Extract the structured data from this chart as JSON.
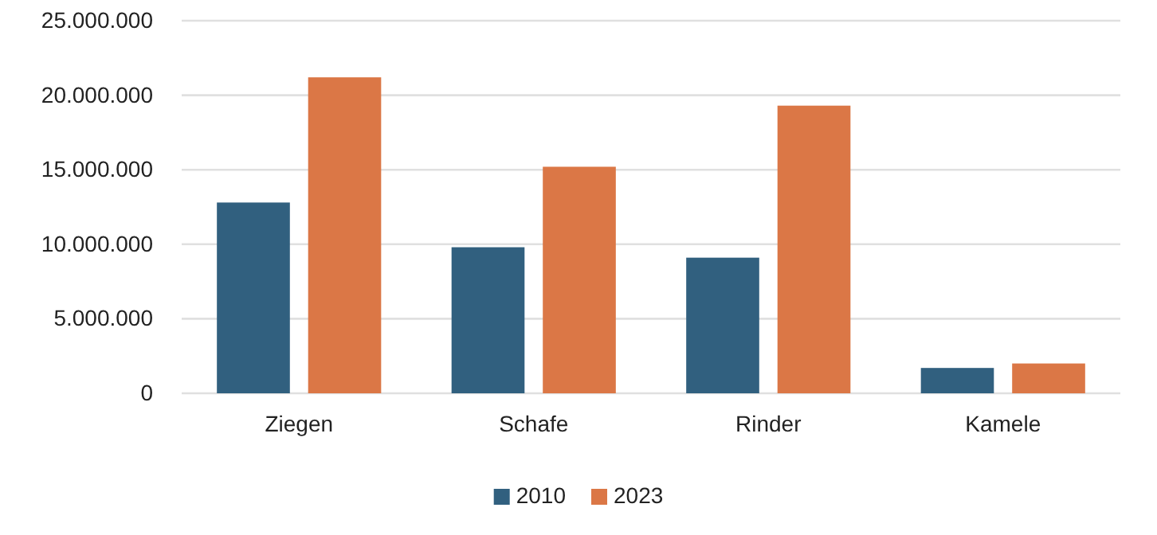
{
  "chart_data": {
    "type": "bar",
    "categories": [
      "Ziegen",
      "Schafe",
      "Rinder",
      "Kamele"
    ],
    "series": [
      {
        "name": "2010",
        "color": "#31607f",
        "values": [
          12800000,
          9800000,
          9100000,
          1700000
        ]
      },
      {
        "name": "2023",
        "color": "#db7746",
        "values": [
          21200000,
          15200000,
          19300000,
          2000000
        ]
      }
    ],
    "ylim": [
      0,
      25000000
    ],
    "yticks": [
      {
        "value": 0,
        "label": "0"
      },
      {
        "value": 5000000,
        "label": "5.000.000"
      },
      {
        "value": 10000000,
        "label": "10.000.000"
      },
      {
        "value": 15000000,
        "label": "15.000.000"
      },
      {
        "value": 20000000,
        "label": "20.000.000"
      },
      {
        "value": 25000000,
        "label": "25.000.000"
      }
    ],
    "grid": "y",
    "legend": "bottom"
  }
}
